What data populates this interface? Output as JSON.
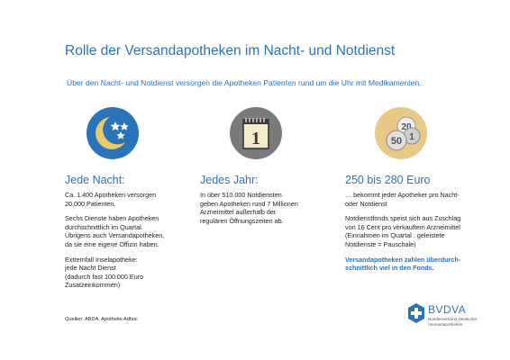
{
  "title": "Rolle der Versandapotheken im Nacht- und Notdienst",
  "subtitle": "Über den Nacht- und Notdienst versorgen die Apotheken Patienten rund um die Uhr mit Medikamenten.",
  "columns": [
    {
      "icon": "moon-stars-icon",
      "heading": "Jede Nacht:",
      "paragraphs": [
        [
          "Ca. 1.400 Apotheken versorgen",
          "20.000 Patienten."
        ],
        [
          "Sechs Dienste haben Apotheken",
          "durchschnittlich im Quartal.",
          "Übrigens auch Versandapotheken,",
          "da sie eine eigene Offizin haben."
        ],
        [
          "Extremfall Inselapotheke:",
          "jede Nacht Dienst",
          "(dadurch fast 100.000 Euro",
          "Zusatzeinkommen)"
        ]
      ]
    },
    {
      "icon": "calendar-icon",
      "calendar_number": "1",
      "heading": "Jedes Jahr:",
      "paragraphs": [
        [
          "In über 510.000 Notdiensten",
          "geben Apotheken rund 7 Millionen",
          "Arzneimittel außerhalb der",
          "regulären Öffnungszeiten ab."
        ]
      ]
    },
    {
      "icon": "coins-icon",
      "coins": [
        "20",
        "1",
        "50"
      ],
      "heading": "250 bis 280 Euro",
      "paragraphs": [
        [
          "… bekommt jeder Apotheker pro Nacht-",
          "oder Notdienst"
        ],
        [
          "Notdienstfonds speist sich aus Zuschlag",
          "von 16 Cent pro verkauftem Arzneimittel",
          "(Einnahmen im Quartal :  geleistete",
          "Notdienste = Pauschale)"
        ]
      ],
      "highlight": [
        "Versandapotheken zahlen überdurch-",
        "schnittlich viel in den Fonds."
      ]
    }
  ],
  "sources": "Quellen: ABDA, Apotheke Adhoc",
  "logo": {
    "name": "BVDVA",
    "sub_lines": [
      "Bundesverband Deutscher",
      "Versandapotheken"
    ]
  },
  "colors": {
    "accent": "#2b73b8",
    "moon_bg": "#2b73b8",
    "moon": "#e9c96a",
    "gray_circle": "#7a7a7a",
    "coin_bg": "#e8c985"
  }
}
